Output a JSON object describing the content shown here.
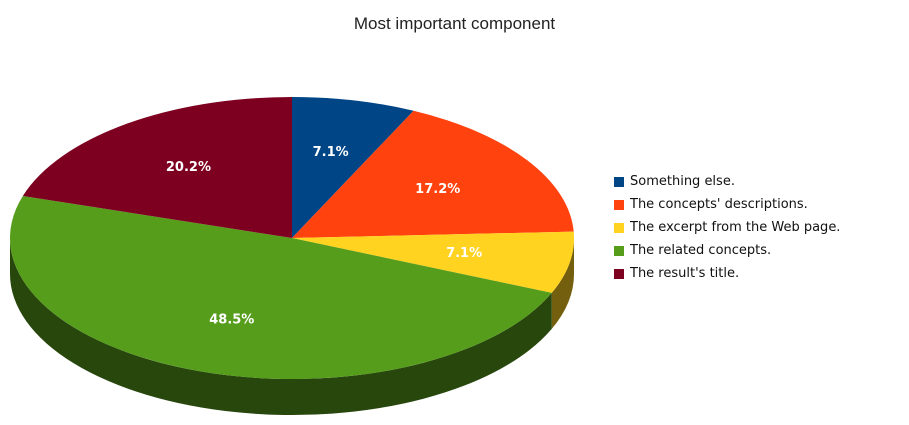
{
  "chart_data": {
    "type": "pie",
    "title": "Most important component",
    "three_d": true,
    "legend_position": "right",
    "slices": [
      {
        "name": "Something else.",
        "value": 7.1,
        "label": "7.1%",
        "color": "#004586"
      },
      {
        "name": "The concepts' descriptions.",
        "value": 17.2,
        "label": "17.2%",
        "color": "#ff420e"
      },
      {
        "name": "The excerpt from the Web page.",
        "value": 7.1,
        "label": "7.1%",
        "color": "#ffd320"
      },
      {
        "name": "The related concepts.",
        "value": 48.5,
        "label": "48.5%",
        "color": "#579d1c"
      },
      {
        "name": "The result's title.",
        "value": 20.2,
        "label": "20.2%",
        "color": "#7e0021"
      }
    ]
  }
}
